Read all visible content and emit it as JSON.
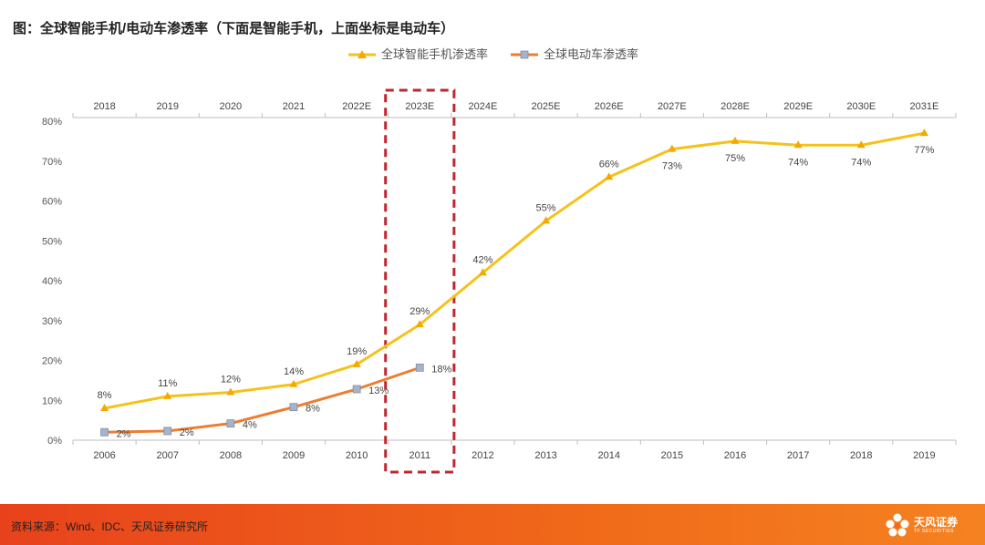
{
  "figure": {
    "title": "图：全球智能手机/电动车渗透率（下面是智能手机，上面坐标是电动车）",
    "source": "资料来源：Wind、IDC、天风证券研究所",
    "logo_text": "天风证券",
    "logo_sub": "TF SECURITIES"
  },
  "chart_data": {
    "type": "line",
    "title": "图：全球智能手机/电动车渗透率（下面是智能手机，上面坐标是电动车）",
    "x_bottom": [
      "2006",
      "2007",
      "2008",
      "2009",
      "2010",
      "2011",
      "2012",
      "2013",
      "2014",
      "2015",
      "2016",
      "2017",
      "2018",
      "2019"
    ],
    "x_top": [
      "2018",
      "2019",
      "2020",
      "2021",
      "2022E",
      "2023E",
      "2024E",
      "2025E",
      "2026E",
      "2027E",
      "2028E",
      "2029E",
      "2030E",
      "2031E"
    ],
    "y_ticks": [
      "0%",
      "10%",
      "20%",
      "30%",
      "40%",
      "50%",
      "60%",
      "70%",
      "80%"
    ],
    "ylim": [
      0,
      80
    ],
    "y_unit": "%",
    "grid": false,
    "legend_position": "top-center",
    "series": [
      {
        "name": "全球智能手机渗透率",
        "color": "#f5c21b",
        "marker": "triangle",
        "values": [
          8,
          11,
          12,
          14,
          19,
          29,
          42,
          55,
          66,
          73,
          75,
          74,
          74,
          77
        ],
        "labels": [
          "8%",
          "11%",
          "12%",
          "14%",
          "19%",
          "29%",
          "42%",
          "55%",
          "66%",
          "73%",
          "75%",
          "74%",
          "74%",
          "77%"
        ]
      },
      {
        "name": "全球电动车渗透率",
        "color": "#ed7d31",
        "marker": "square",
        "values": [
          2,
          2.3,
          4.2,
          8.3,
          12.8,
          18.2
        ],
        "labels": [
          "2%",
          "2%",
          "4%",
          "8%",
          "13%",
          "18%"
        ]
      }
    ],
    "highlight": {
      "category_index": 5,
      "style": "dashed-box",
      "color": "#c0262d"
    }
  }
}
